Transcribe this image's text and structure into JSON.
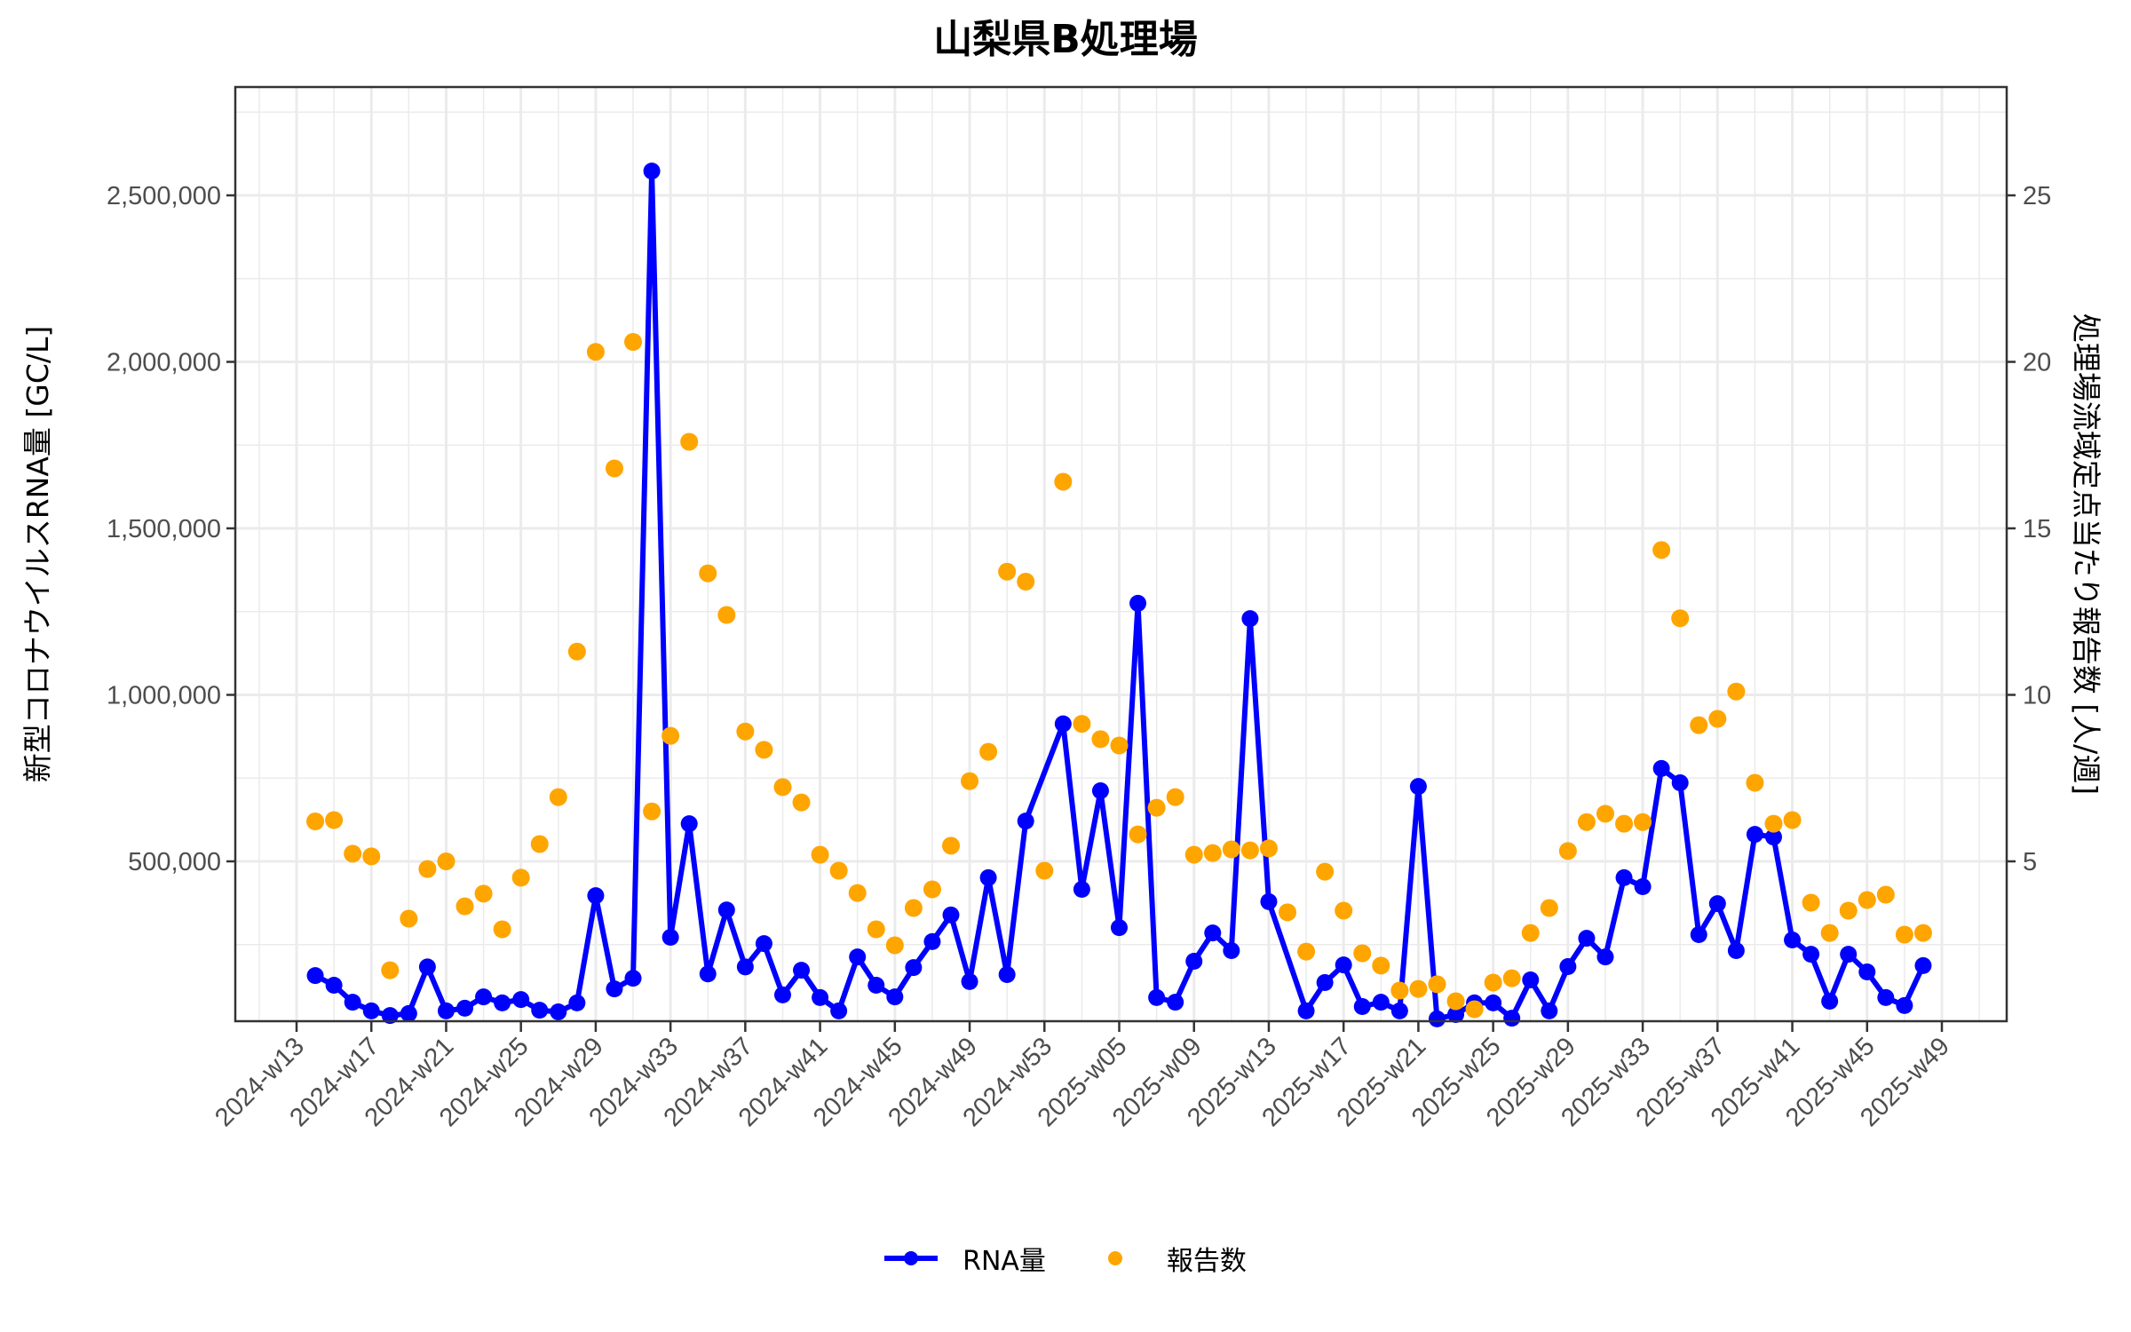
{
  "chart": {
    "title": "山梨県B処理場",
    "y_left_title": "新型コロナウイルスRNA量 [GC/L]",
    "y_right_title": "処理場流域定点当たり報告数 [人/週]",
    "legend": [
      {
        "label": "RNA量",
        "color": "#0000ff",
        "key": "line-point"
      },
      {
        "label": "報告数",
        "color": "#ffa500",
        "key": "point"
      }
    ],
    "colors": {
      "rna": "#0000ff",
      "reports": "#ffa500",
      "grid": "#ebebeb",
      "panel_border": "#333333",
      "axis_text": "#4d4d4d"
    }
  },
  "chart_data": {
    "type": "line",
    "title": "山梨県B処理場",
    "xlabel": "",
    "ylabel": "新型コロナウイルスRNA量 [GC/L]",
    "y2label": "処理場流域定点当たり報告数 [人/週]",
    "ylim": [
      0,
      2800000
    ],
    "y2lim": [
      0,
      28
    ],
    "y_ticks": [
      500000,
      1000000,
      1500000,
      2000000,
      2500000
    ],
    "y_tick_labels": [
      "500,000",
      "1,000,000",
      "1,500,000",
      "2,000,000",
      "2,500,000"
    ],
    "y2_ticks": [
      5,
      10,
      15,
      20,
      25
    ],
    "y2_tick_labels": [
      "5",
      "10",
      "15",
      "20",
      "25"
    ],
    "x_tick_labels": [
      "2024-w13",
      "2024-w17",
      "2024-w21",
      "2024-w25",
      "2024-w29",
      "2024-w33",
      "2024-w37",
      "2024-w41",
      "2024-w45",
      "2024-w49",
      "2024-w53",
      "2025-w05",
      "2025-w09",
      "2025-w13",
      "2025-w17",
      "2025-w21",
      "2025-w25",
      "2025-w29",
      "2025-w33",
      "2025-w37",
      "2025-w41",
      "2025-w45",
      "2025-w49"
    ],
    "grid": true,
    "legend_position": "bottom",
    "categories": [
      "2024-w13",
      "2024-w14",
      "2024-w15",
      "2024-w16",
      "2024-w17",
      "2024-w18",
      "2024-w19",
      "2024-w20",
      "2024-w21",
      "2024-w22",
      "2024-w23",
      "2024-w24",
      "2024-w25",
      "2024-w26",
      "2024-w27",
      "2024-w28",
      "2024-w29",
      "2024-w30",
      "2024-w31",
      "2024-w32",
      "2024-w33",
      "2024-w34",
      "2024-w35",
      "2024-w36",
      "2024-w37",
      "2024-w38",
      "2024-w39",
      "2024-w40",
      "2024-w41",
      "2024-w42",
      "2024-w43",
      "2024-w44",
      "2024-w45",
      "2024-w46",
      "2024-w47",
      "2024-w48",
      "2024-w49",
      "2024-w50",
      "2024-w51",
      "2024-w52",
      "2024-w53",
      "2025-w02",
      "2025-w03",
      "2025-w04",
      "2025-w05",
      "2025-w06",
      "2025-w07",
      "2025-w08",
      "2025-w09",
      "2025-w10",
      "2025-w11",
      "2025-w12",
      "2025-w13",
      "2025-w14",
      "2025-w15",
      "2025-w16",
      "2025-w17",
      "2025-w18",
      "2025-w19",
      "2025-w20",
      "2025-w21",
      "2025-w22",
      "2025-w23",
      "2025-w24",
      "2025-w25",
      "2025-w26",
      "2025-w27",
      "2025-w28",
      "2025-w29",
      "2025-w30",
      "2025-w31",
      "2025-w32",
      "2025-w33",
      "2025-w34",
      "2025-w35",
      "2025-w36",
      "2025-w37",
      "2025-w38",
      "2025-w39",
      "2025-w40",
      "2025-w41",
      "2025-w42",
      "2025-w43",
      "2025-w44",
      "2025-w45",
      "2025-w46",
      "2025-w47",
      "2025-w48",
      "2025-w49"
    ],
    "series": [
      {
        "name": "RNA量",
        "axis": "left",
        "type": "line+point",
        "color": "#0000ff",
        "values": [
          null,
          157000,
          128000,
          77000,
          51000,
          37000,
          43000,
          183000,
          51000,
          59000,
          93000,
          75000,
          85000,
          53000,
          48000,
          75000,
          397000,
          117000,
          149000,
          2573000,
          272000,
          613000,
          162000,
          354000,
          183000,
          253000,
          99000,
          173000,
          91000,
          51000,
          213000,
          128000,
          93000,
          181000,
          259000,
          339000,
          139000,
          451000,
          160000,
          621000,
          null,
          913000,
          416000,
          712000,
          301000,
          1275000,
          91000,
          77000,
          200000,
          285000,
          232000,
          1229000,
          379000,
          null,
          51000,
          136000,
          189000,
          64000,
          77000,
          51000,
          725000,
          27000,
          40000,
          75000,
          75000,
          29000,
          144000,
          51000,
          184000,
          269000,
          213000,
          451000,
          424000,
          779000,
          736000,
          280000,
          373000,
          232000,
          581000,
          573000,
          264000,
          221000,
          80000,
          221000,
          168000,
          91000,
          67000,
          187000,
          null
        ]
      },
      {
        "name": "報告数",
        "axis": "right",
        "type": "point",
        "color": "#ffa500",
        "values": [
          null,
          6.2,
          6.24,
          5.23,
          5.15,
          1.73,
          3.28,
          4.77,
          5.0,
          3.65,
          4.03,
          2.96,
          4.51,
          5.52,
          6.93,
          11.3,
          20.3,
          16.8,
          20.6,
          6.5,
          8.77,
          17.6,
          13.65,
          12.4,
          8.9,
          8.35,
          7.23,
          6.77,
          5.2,
          4.72,
          4.05,
          2.96,
          2.48,
          3.6,
          4.16,
          5.47,
          7.41,
          8.29,
          13.7,
          13.4,
          4.72,
          16.4,
          9.13,
          8.67,
          8.48,
          5.81,
          6.61,
          6.93,
          5.2,
          5.25,
          5.36,
          5.33,
          5.39,
          3.47,
          2.29,
          4.69,
          3.52,
          2.24,
          1.87,
          1.12,
          1.17,
          1.31,
          0.8,
          0.56,
          1.36,
          1.49,
          2.85,
          3.6,
          5.31,
          6.18,
          6.43,
          6.13,
          6.18,
          14.35,
          12.3,
          9.09,
          9.28,
          10.1,
          7.36,
          6.13,
          6.24,
          3.76,
          2.85,
          3.52,
          3.84,
          4.0,
          2.8,
          2.85,
          null
        ]
      }
    ]
  }
}
